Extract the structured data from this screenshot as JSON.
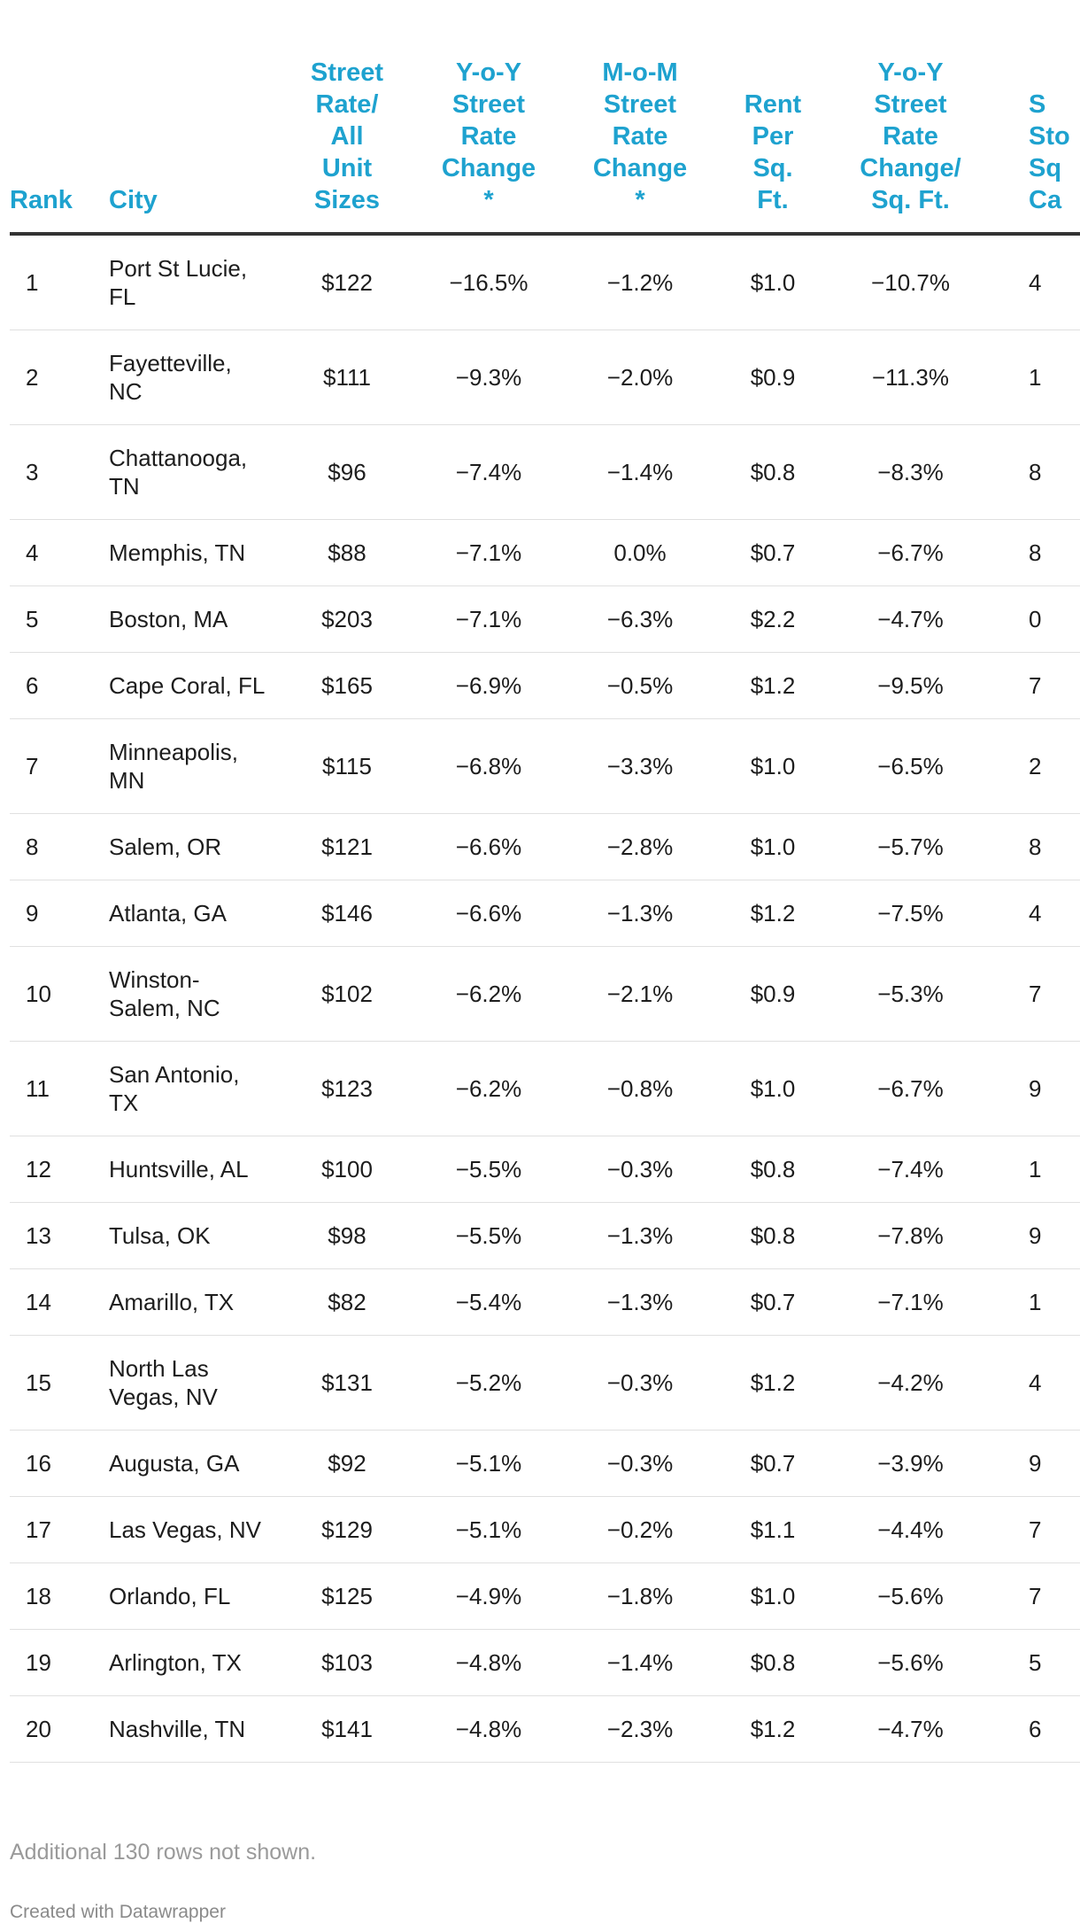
{
  "chart_data": {
    "type": "table",
    "title": "",
    "columns": [
      "Rank",
      "City",
      "Street Rate/ All Unit Sizes",
      "Y-o-Y Street Rate Change *",
      "M-o-M Street Rate Change *",
      "Rent Per Sq. Ft.",
      "Y-o-Y Street Rate Change/ Sq. Ft.",
      "Self Storage Sq. Ft. Capita"
    ],
    "header_lines": [
      [
        "Rank"
      ],
      [
        "City"
      ],
      [
        "Street",
        "Rate/",
        "All",
        "Unit",
        "Sizes"
      ],
      [
        "Y-o-Y",
        "Street",
        "Rate",
        "Change",
        "*"
      ],
      [
        "M-o-M",
        "Street",
        "Rate",
        "Change",
        "*"
      ],
      [
        "Rent",
        "Per",
        "Sq.",
        "Ft."
      ],
      [
        "Y-o-Y",
        "Street",
        "Rate",
        "Change/",
        "Sq. Ft."
      ],
      [
        "S",
        "Sto",
        "Sq",
        "Ca"
      ]
    ],
    "rows": [
      [
        "1",
        "Port St Lucie, FL",
        "$122",
        "−16.5%",
        "−1.2%",
        "$1.0",
        "−10.7%",
        "4"
      ],
      [
        "2",
        "Fayetteville, NC",
        "$111",
        "−9.3%",
        "−2.0%",
        "$0.9",
        "−11.3%",
        "1"
      ],
      [
        "3",
        "Chattanooga, TN",
        "$96",
        "−7.4%",
        "−1.4%",
        "$0.8",
        "−8.3%",
        "8"
      ],
      [
        "4",
        "Memphis, TN",
        "$88",
        "−7.1%",
        "0.0%",
        "$0.7",
        "−6.7%",
        "8"
      ],
      [
        "5",
        "Boston, MA",
        "$203",
        "−7.1%",
        "−6.3%",
        "$2.2",
        "−4.7%",
        "0"
      ],
      [
        "6",
        "Cape Coral, FL",
        "$165",
        "−6.9%",
        "−0.5%",
        "$1.2",
        "−9.5%",
        "7"
      ],
      [
        "7",
        "Minneapolis, MN",
        "$115",
        "−6.8%",
        "−3.3%",
        "$1.0",
        "−6.5%",
        "2"
      ],
      [
        "8",
        "Salem, OR",
        "$121",
        "−6.6%",
        "−2.8%",
        "$1.0",
        "−5.7%",
        "8"
      ],
      [
        "9",
        "Atlanta, GA",
        "$146",
        "−6.6%",
        "−1.3%",
        "$1.2",
        "−7.5%",
        "4"
      ],
      [
        "10",
        "Winston-Salem, NC",
        "$102",
        "−6.2%",
        "−2.1%",
        "$0.9",
        "−5.3%",
        "7"
      ],
      [
        "11",
        "San Antonio, TX",
        "$123",
        "−6.2%",
        "−0.8%",
        "$1.0",
        "−6.7%",
        "9"
      ],
      [
        "12",
        "Huntsville, AL",
        "$100",
        "−5.5%",
        "−0.3%",
        "$0.8",
        "−7.4%",
        "1"
      ],
      [
        "13",
        "Tulsa, OK",
        "$98",
        "−5.5%",
        "−1.3%",
        "$0.8",
        "−7.8%",
        "9"
      ],
      [
        "14",
        "Amarillo, TX",
        "$82",
        "−5.4%",
        "−1.3%",
        "$0.7",
        "−7.1%",
        "1"
      ],
      [
        "15",
        "North Las Vegas, NV",
        "$131",
        "−5.2%",
        "−0.3%",
        "$1.2",
        "−4.2%",
        "4"
      ],
      [
        "16",
        "Augusta, GA",
        "$92",
        "−5.1%",
        "−0.3%",
        "$0.7",
        "−3.9%",
        "9"
      ],
      [
        "17",
        "Las Vegas, NV",
        "$129",
        "−5.1%",
        "−0.2%",
        "$1.1",
        "−4.4%",
        "7"
      ],
      [
        "18",
        "Orlando, FL",
        "$125",
        "−4.9%",
        "−1.8%",
        "$1.0",
        "−5.6%",
        "7"
      ],
      [
        "19",
        "Arlington, TX",
        "$103",
        "−4.8%",
        "−1.4%",
        "$0.8",
        "−5.6%",
        "5"
      ],
      [
        "20",
        "Nashville, TN",
        "$141",
        "−4.8%",
        "−2.3%",
        "$1.2",
        "−4.7%",
        "6"
      ]
    ],
    "footnote": "Additional 130 rows not shown.",
    "credit": "Created with Datawrapper",
    "colors": {
      "header_text": "#1ea2cf",
      "body_text": "#1d1d1d",
      "header_rule": "#333333",
      "row_rule": "#e0e0e0",
      "footnote_text": "#9a9a9a"
    }
  }
}
